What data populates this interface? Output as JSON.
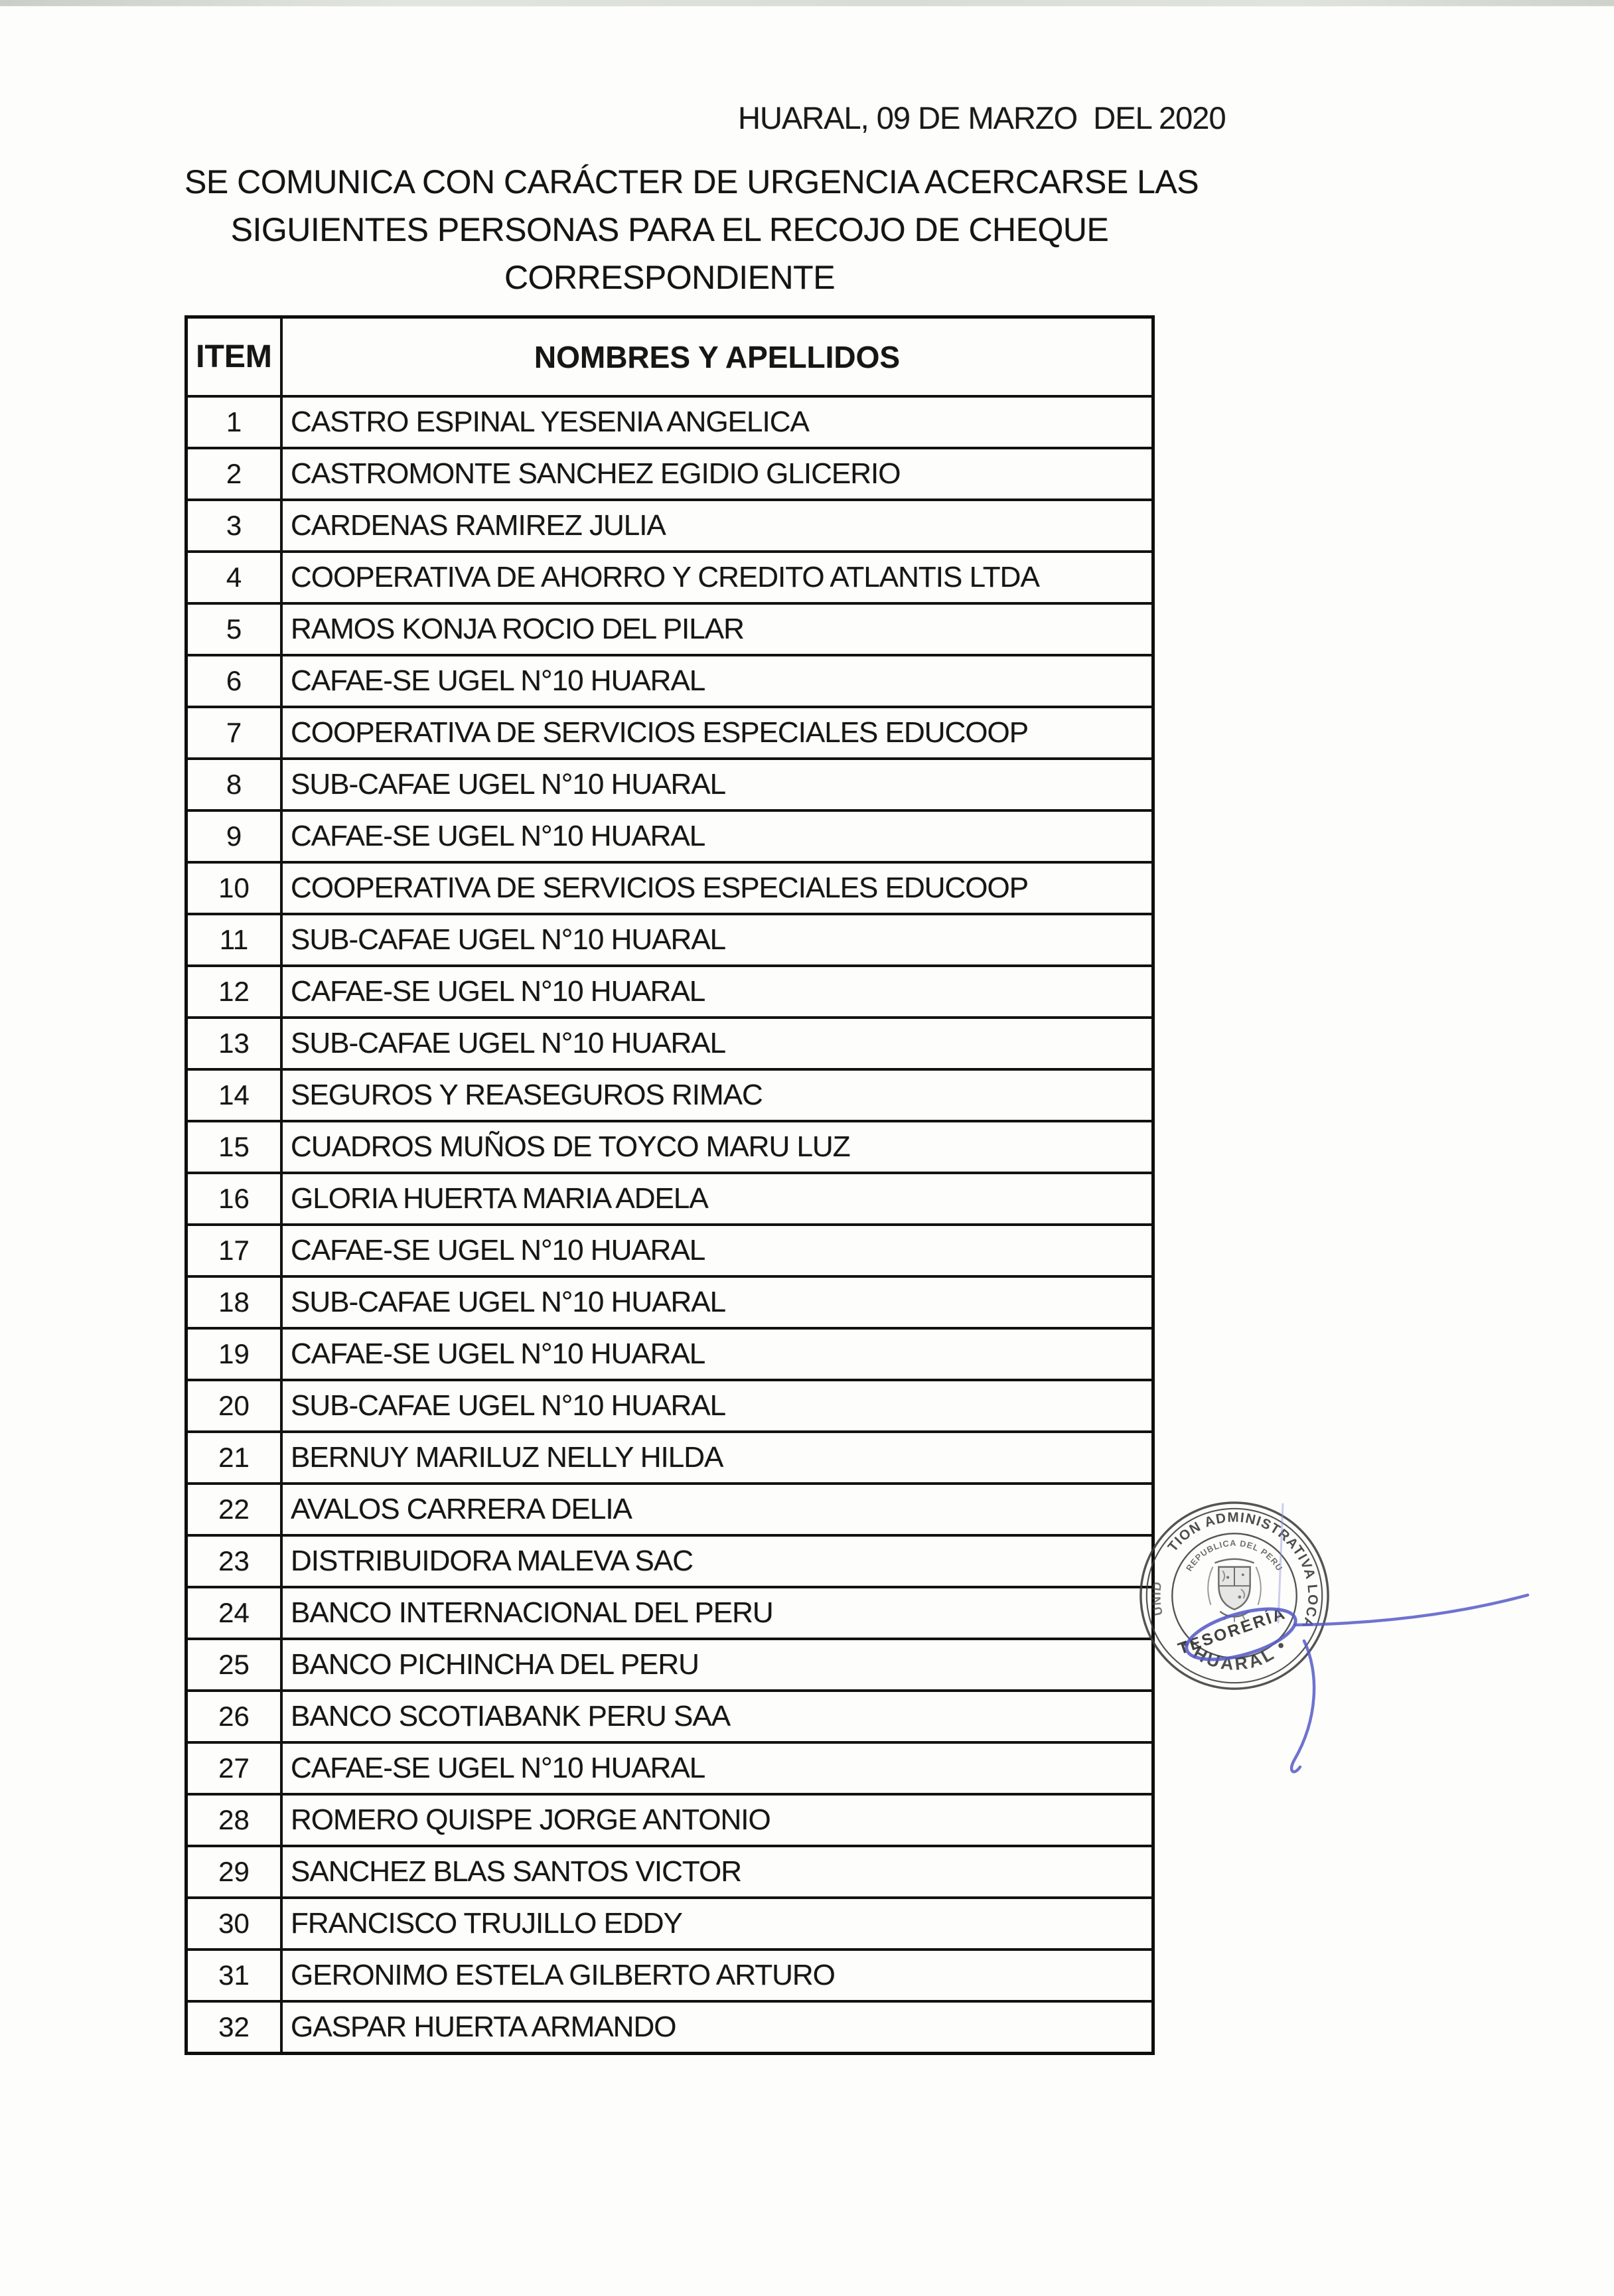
{
  "header": {
    "date_line": "HUARAL, 09 DE MARZO  DEL 2020",
    "title_lines": [
      "SE COMUNICA CON CARÁCTER DE URGENCIA ACERCARSE LAS",
      "SIGUIENTES PERSONAS PARA EL RECOJO DE CHEQUE",
      "CORRESPONDIENTE"
    ]
  },
  "table": {
    "headers": {
      "item": "ITEM",
      "names": "NOMBRES Y APELLIDOS"
    },
    "rows": [
      {
        "item": "1",
        "name": "CASTRO ESPINAL YESENIA ANGELICA"
      },
      {
        "item": "2",
        "name": "CASTROMONTE SANCHEZ EGIDIO GLICERIO"
      },
      {
        "item": "3",
        "name": "CARDENAS RAMIREZ JULIA"
      },
      {
        "item": "4",
        "name": "COOPERATIVA DE AHORRO Y CREDITO ATLANTIS LTDA"
      },
      {
        "item": "5",
        "name": "RAMOS KONJA ROCIO DEL PILAR"
      },
      {
        "item": "6",
        "name": "CAFAE-SE UGEL N°10 HUARAL"
      },
      {
        "item": "7",
        "name": "COOPERATIVA DE SERVICIOS ESPECIALES EDUCOOP"
      },
      {
        "item": "8",
        "name": "SUB-CAFAE UGEL N°10 HUARAL"
      },
      {
        "item": "9",
        "name": "CAFAE-SE UGEL N°10 HUARAL"
      },
      {
        "item": "10",
        "name": "COOPERATIVA DE SERVICIOS ESPECIALES EDUCOOP"
      },
      {
        "item": "11",
        "name": "SUB-CAFAE UGEL N°10 HUARAL"
      },
      {
        "item": "12",
        "name": "CAFAE-SE UGEL N°10 HUARAL"
      },
      {
        "item": "13",
        "name": "SUB-CAFAE UGEL N°10 HUARAL"
      },
      {
        "item": "14",
        "name": "SEGUROS Y REASEGUROS RIMAC"
      },
      {
        "item": "15",
        "name": "CUADROS MUÑOS DE TOYCO MARU LUZ"
      },
      {
        "item": "16",
        "name": "GLORIA HUERTA MARIA ADELA"
      },
      {
        "item": "17",
        "name": "CAFAE-SE UGEL N°10 HUARAL"
      },
      {
        "item": "18",
        "name": "SUB-CAFAE UGEL N°10 HUARAL"
      },
      {
        "item": "19",
        "name": "CAFAE-SE UGEL N°10 HUARAL"
      },
      {
        "item": "20",
        "name": "SUB-CAFAE UGEL N°10 HUARAL"
      },
      {
        "item": "21",
        "name": "BERNUY MARILUZ NELLY HILDA"
      },
      {
        "item": "22",
        "name": "AVALOS CARRERA DELIA"
      },
      {
        "item": "23",
        "name": "DISTRIBUIDORA MALEVA SAC"
      },
      {
        "item": "24",
        "name": "BANCO INTERNACIONAL DEL PERU"
      },
      {
        "item": "25",
        "name": "BANCO PICHINCHA DEL PERU"
      },
      {
        "item": "26",
        "name": "BANCO SCOTIABANK PERU SAA"
      },
      {
        "item": "27",
        "name": "CAFAE-SE UGEL N°10 HUARAL"
      },
      {
        "item": "28",
        "name": "ROMERO QUISPE JORGE ANTONIO"
      },
      {
        "item": "29",
        "name": "SANCHEZ BLAS SANTOS VICTOR"
      },
      {
        "item": "30",
        "name": "FRANCISCO TRUJILLO EDDY"
      },
      {
        "item": "31",
        "name": "GERONIMO ESTELA GILBERTO ARTURO"
      },
      {
        "item": "32",
        "name": "GASPAR HUERTA ARMANDO"
      }
    ]
  },
  "stamp": {
    "ring_text": "GESTION ADMINISTRATIVA LOCAL N°",
    "ring_text_left": "UNID",
    "inner_arc_text": "REPUBLICA DEL PERU",
    "center_text": "TESORERÍA",
    "bottom_text": "•  HUARAL  •",
    "ink_color": "#3d3d3d",
    "pen_color": "#565bc8"
  }
}
